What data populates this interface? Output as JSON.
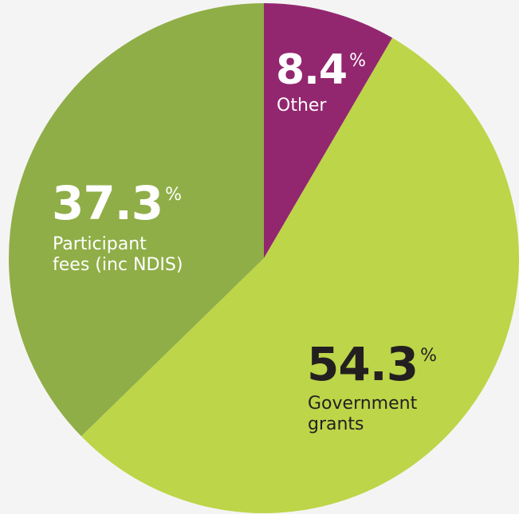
{
  "chart_data": {
    "type": "pie",
    "start_angle_deg": 0,
    "direction": "clockwise",
    "slices": [
      {
        "label_lines": [
          "Other"
        ],
        "value": 8.4,
        "value_text": "8.4",
        "unit": "%",
        "color": "#93276f",
        "text_color": "#ffffff"
      },
      {
        "label_lines": [
          "Government",
          "grants"
        ],
        "value": 54.3,
        "value_text": "54.3",
        "unit": "%",
        "color": "#bdd548",
        "text_color": "#231f20"
      },
      {
        "label_lines": [
          "Participant",
          "fees (inc NDIS)"
        ],
        "value": 37.3,
        "value_text": "37.3",
        "unit": "%",
        "color": "#8fae47",
        "text_color": "#ffffff"
      }
    ]
  }
}
